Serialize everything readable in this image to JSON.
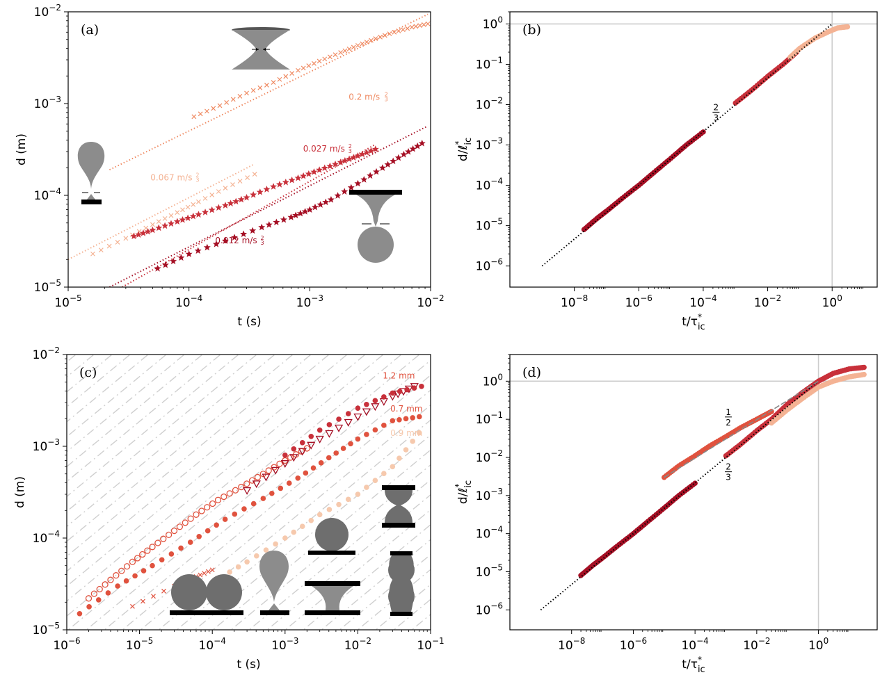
{
  "colors": {
    "dark_red": "#a50f24",
    "red": "#c8303a",
    "mid_red": "#e0523e",
    "salmon": "#ef8a62",
    "light_salmon": "#f4b394",
    "pale": "#f6c9ad",
    "ref_line": "#cccccc",
    "shape_gray": "#8c8c8c",
    "dark_gray": "#6e6e6e",
    "hatch": "#cfcfcf"
  },
  "chart_data": [
    {
      "id": "a",
      "type": "scatter",
      "panel_label": "(a)",
      "xlabel": "t (s)",
      "ylabel": "d (m)",
      "xscale": "log",
      "yscale": "log",
      "xlim": [
        1e-05,
        0.01
      ],
      "ylim": [
        1e-05,
        0.01
      ],
      "x_tick_exponents": [
        -5,
        -4,
        -3,
        -2
      ],
      "y_tick_exponents": [
        -5,
        -4,
        -3,
        -2
      ],
      "annotations": [
        {
          "text": "0.2 m/s²/³",
          "main": "0.2 m/s",
          "num": "2",
          "den": "3",
          "x": 0.0021,
          "y": 0.0011,
          "color": "#ef8a62"
        },
        {
          "text": "0.027 m/s²/³",
          "main": "0.027 m/s",
          "num": "2",
          "den": "3",
          "x": 0.00088,
          "y": 0.0003,
          "color": "#c8303a"
        },
        {
          "text": "0.067 m/s²/³",
          "main": "0.067 m/s",
          "num": "2",
          "den": "3",
          "x": 4.8e-05,
          "y": 0.000145,
          "color": "#f4b394"
        },
        {
          "text": "0.012 m/s²/³",
          "main": "0.012 m/s",
          "num": "2",
          "den": "3",
          "x": 0.000165,
          "y": 3e-05,
          "color": "#a50f24"
        }
      ],
      "series": [
        {
          "marker": "x",
          "color": "#ef8a62",
          "x": [
            0.00011,
            0.00018,
            0.0003,
            0.0005,
            0.0008,
            0.0012,
            0.0018,
            0.0025,
            0.0035,
            0.005,
            0.007,
            0.0095
          ],
          "y": [
            0.00072,
            0.00095,
            0.0013,
            0.0017,
            0.0023,
            0.0029,
            0.0036,
            0.0043,
            0.0051,
            0.006,
            0.0068,
            0.0074
          ],
          "fit": {
            "x0": 2.2e-05,
            "x1": 0.0095,
            "y0": 0.00019,
            "y1": 0.0094
          }
        },
        {
          "marker": "x",
          "color": "#f4b394",
          "x": [
            1.6e-05,
            3e-05,
            5e-05,
            8e-05,
            0.00012,
            0.0002,
            0.00035
          ],
          "y": [
            2.3e-05,
            3.4e-05,
            4.8e-05,
            6.5e-05,
            8.5e-05,
            0.00012,
            0.00017
          ],
          "fit": {
            "x0": 1e-05,
            "x1": 0.00035,
            "y0": 2e-05,
            "y1": 0.00022
          }
        },
        {
          "marker": "star",
          "color": "#c8303a",
          "x": [
            3.5e-05,
            5e-05,
            8e-05,
            0.00012,
            0.0002,
            0.0003,
            0.0005,
            0.0008,
            0.0012,
            0.0018,
            0.0025,
            0.0035
          ],
          "y": [
            3.6e-05,
            4.2e-05,
            5.2e-05,
            6.2e-05,
            7.8e-05,
            9.5e-05,
            0.000125,
            0.000155,
            0.00019,
            0.00023,
            0.00027,
            0.00032
          ],
          "fit": {
            "x0": 2.8e-05,
            "x1": 0.0035,
            "y0": 1e-05,
            "y1": 0.00036
          }
        },
        {
          "marker": "star",
          "color": "#a50f24",
          "x": [
            5.5e-05,
            0.0001,
            0.0002,
            0.0004,
            0.0007,
            0.001,
            0.0015,
            0.0025,
            0.004,
            0.006,
            0.0085
          ],
          "y": [
            1.6e-05,
            2.3e-05,
            3.2e-05,
            4.5e-05,
            5.8e-05,
            7e-05,
            9e-05,
            0.000135,
            0.0002,
            0.00028,
            0.00037
          ],
          "fit": {
            "x0": 2.2e-05,
            "x1": 0.0095,
            "y0": 1e-05,
            "y1": 0.00057
          }
        }
      ]
    },
    {
      "id": "b",
      "type": "scatter",
      "panel_label": "(b)",
      "xlabel": "t/τ*ic",
      "ylabel": "d/ℓ*ic",
      "xscale": "log",
      "yscale": "log",
      "xlim": [
        1e-10,
        25
      ],
      "ylim": [
        3e-07,
        2
      ],
      "x_tick_exponents": [
        -8,
        -6,
        -4,
        -2,
        0
      ],
      "y_tick_exponents": [
        -6,
        -5,
        -4,
        -3,
        -2,
        -1,
        0
      ],
      "slope_labels": [
        {
          "num": "2",
          "den": "3",
          "x": 0.00025,
          "y": 0.0065
        }
      ],
      "reference_lines": {
        "hline": 1,
        "vline": 1
      },
      "fit_line": {
        "x0": 1e-09,
        "x1": 1,
        "y0": 1e-06,
        "y1": 1
      },
      "series": [
        {
          "color": "#a50f24",
          "x": [
            2e-08,
            5e-08,
            1e-07,
            3e-07,
            1e-06,
            3e-06,
            1e-05,
            3e-05,
            0.0001
          ],
          "y": [
            8e-06,
            1.5e-05,
            2.3e-05,
            4.7e-05,
            0.0001,
            0.00021,
            0.00047,
            0.001,
            0.0021
          ]
        },
        {
          "color": "#c8303a",
          "x": [
            0.001,
            0.003,
            0.01,
            0.03,
            0.08
          ],
          "y": [
            0.011,
            0.022,
            0.05,
            0.1,
            0.2
          ]
        },
        {
          "color": "#f4b394",
          "x": [
            0.05,
            0.1,
            0.3,
            0.8,
            1.5,
            3
          ],
          "y": [
            0.15,
            0.25,
            0.45,
            0.65,
            0.8,
            0.85
          ]
        }
      ]
    },
    {
      "id": "c",
      "type": "scatter",
      "panel_label": "(c)",
      "xlabel": "t (s)",
      "ylabel": "d (m)",
      "xscale": "log",
      "yscale": "log",
      "xlim": [
        1e-06,
        0.1
      ],
      "ylim": [
        1e-05,
        0.01
      ],
      "x_tick_exponents": [
        -6,
        -5,
        -4,
        -3,
        -2,
        -1
      ],
      "y_tick_exponents": [
        -5,
        -4,
        -3,
        -2
      ],
      "annotations": [
        {
          "text": "1.2 mm",
          "main": "1.2 mm",
          "x": 0.022,
          "y": 0.0055,
          "color": "#e0523e"
        },
        {
          "text": "0.7 mm",
          "main": "0.7 mm",
          "x": 0.028,
          "y": 0.0024,
          "color": "#e0523e"
        },
        {
          "text": "0.9 mm",
          "main": "0.9 mm",
          "x": 0.028,
          "y": 0.0013,
          "color": "#f6c9ad"
        }
      ],
      "series": [
        {
          "marker": "circle-open",
          "color": "#e0523e",
          "x": [
            2e-06,
            4e-06,
            8e-06,
            1.5e-05,
            3e-05,
            6e-05,
            0.00012,
            0.00025,
            0.0005,
            0.001,
            0.002
          ],
          "y": [
            2.2e-05,
            3.5e-05,
            5.5e-05,
            8e-05,
            0.00012,
            0.00018,
            0.00026,
            0.00036,
            0.0005,
            0.0007,
            0.00095
          ]
        },
        {
          "marker": "circle",
          "color": "#e0523e",
          "x": [
            1.5e-06,
            5e-06,
            1.5e-05,
            5e-05,
            0.00015,
            0.0005,
            0.0015,
            0.004,
            0.01,
            0.03,
            0.07
          ],
          "y": [
            1.5e-05,
            3e-05,
            5e-05,
            9e-05,
            0.00016,
            0.00027,
            0.00045,
            0.00075,
            0.0012,
            0.0019,
            0.0021
          ]
        },
        {
          "marker": "triangle-open",
          "color": "#a50f24",
          "x": [
            0.0003,
            0.001,
            0.003,
            0.01,
            0.03,
            0.06
          ],
          "y": [
            0.00033,
            0.00065,
            0.0012,
            0.0021,
            0.0035,
            0.0045
          ]
        },
        {
          "marker": "circle",
          "color": "#c8303a",
          "x": [
            0.001,
            0.003,
            0.01,
            0.03,
            0.075
          ],
          "y": [
            0.0008,
            0.0015,
            0.0026,
            0.0038,
            0.0045
          ]
        },
        {
          "marker": "circle",
          "color": "#f6c9ad",
          "x": [
            0.0001,
            0.0003,
            0.001,
            0.003,
            0.01,
            0.03,
            0.07
          ],
          "y": [
            3.3e-05,
            5.5e-05,
            0.0001,
            0.00018,
            0.0003,
            0.0006,
            0.0014
          ]
        },
        {
          "marker": "x",
          "color": "#e0523e",
          "x": [
            8e-06,
            3e-05,
            6e-05,
            0.0001
          ],
          "y": [
            1.8e-05,
            3e-05,
            3.8e-05,
            4.5e-05
          ]
        }
      ]
    },
    {
      "id": "d",
      "type": "scatter",
      "panel_label": "(d)",
      "xlabel": "t/τ*ic",
      "ylabel": "d/ℓ*ic",
      "xscale": "log",
      "yscale": "log",
      "xlim": [
        1e-10,
        80
      ],
      "ylim": [
        3e-07,
        5
      ],
      "x_tick_exponents": [
        -8,
        -6,
        -4,
        -2,
        0
      ],
      "y_tick_exponents": [
        -6,
        -5,
        -4,
        -3,
        -2,
        -1,
        0
      ],
      "slope_labels": [
        {
          "num": "1",
          "den": "2",
          "x": 0.0012,
          "y": 0.115
        },
        {
          "num": "2",
          "den": "3",
          "x": 0.0012,
          "y": 0.0042
        }
      ],
      "reference_lines": {
        "hline": 1,
        "vline": 1
      },
      "fit_line": {
        "x0": 1e-09,
        "x1": 1,
        "y0": 1e-06,
        "y1": 1
      },
      "fit_line_half": {
        "x0": 1e-05,
        "x1": 1,
        "y0": 0.003,
        "y1": 1
      },
      "series": [
        {
          "color": "#a50f24",
          "x": [
            2e-08,
            5e-08,
            1e-07,
            3e-07,
            1e-06,
            3e-06,
            1e-05,
            3e-05,
            0.0001
          ],
          "y": [
            8e-06,
            1.5e-05,
            2.3e-05,
            4.7e-05,
            0.0001,
            0.00021,
            0.00047,
            0.001,
            0.0021
          ]
        },
        {
          "color": "#e0523e",
          "x": [
            1e-05,
            3e-05,
            0.0001,
            0.0003,
            0.001,
            0.003,
            0.01,
            0.03
          ],
          "y": [
            0.003,
            0.006,
            0.011,
            0.02,
            0.035,
            0.06,
            0.1,
            0.16
          ]
        },
        {
          "color": "#c8303a",
          "x": [
            0.001,
            0.003,
            0.01,
            0.03,
            0.1,
            0.3,
            1,
            3,
            10,
            30
          ],
          "y": [
            0.011,
            0.022,
            0.05,
            0.1,
            0.25,
            0.5,
            1,
            1.6,
            2.1,
            2.3
          ]
        },
        {
          "color": "#f4b394",
          "x": [
            0.03,
            0.1,
            0.3,
            1,
            3,
            10,
            30
          ],
          "y": [
            0.08,
            0.18,
            0.35,
            0.7,
            1,
            1.3,
            1.5
          ]
        }
      ]
    }
  ]
}
